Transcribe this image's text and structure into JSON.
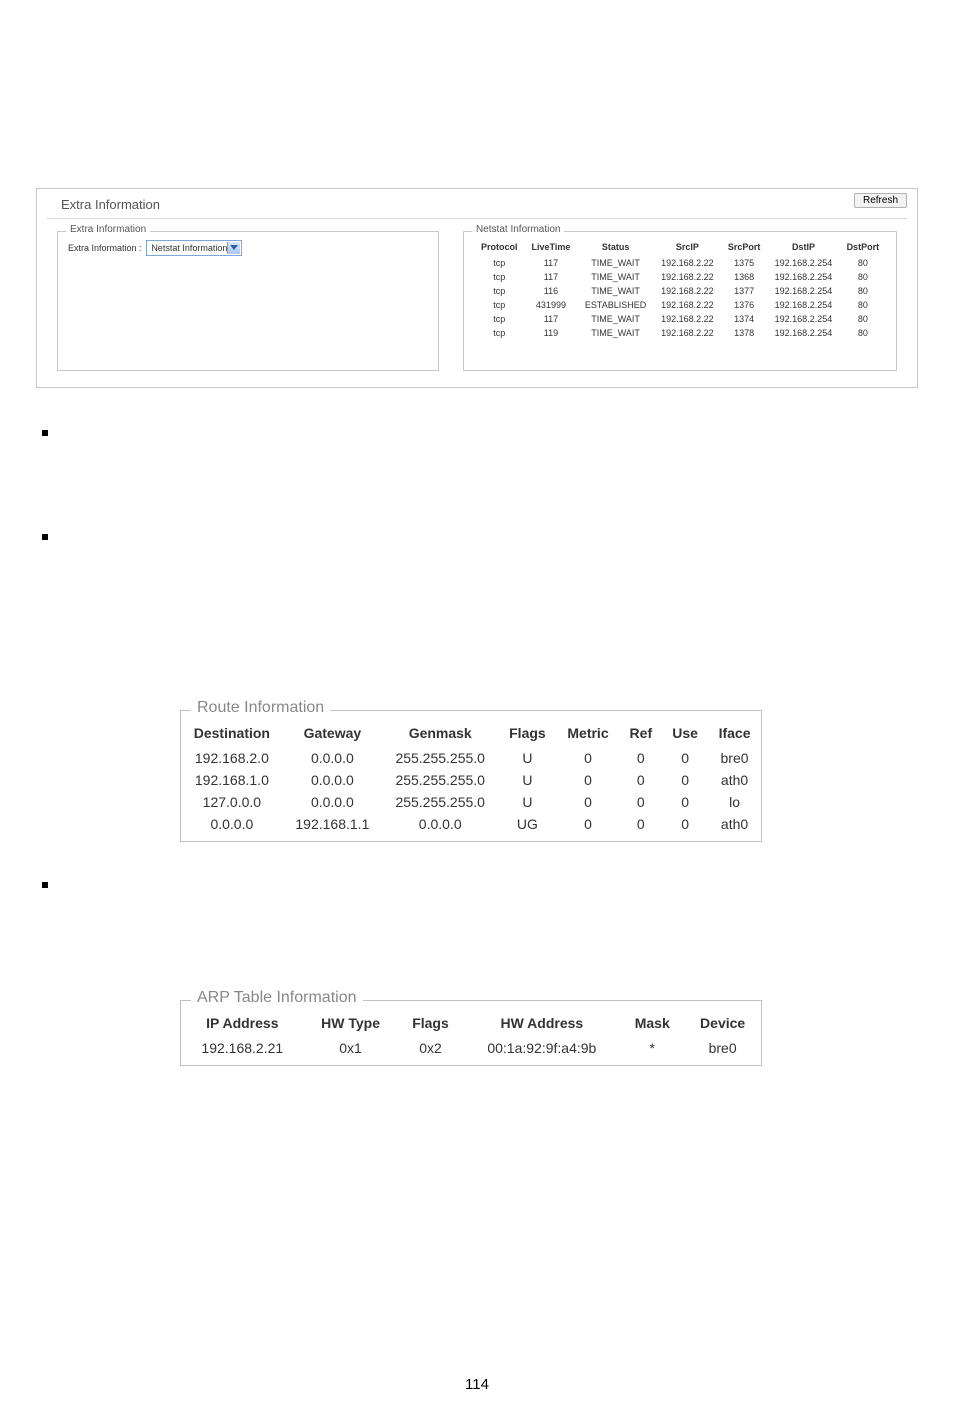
{
  "page_number": "114",
  "screenshot": {
    "title": "Extra Information",
    "refresh_label": "Refresh",
    "left_fieldset": {
      "legend": "Extra Information",
      "label": "Extra Information :",
      "selected": "Netstat Information"
    },
    "netstat": {
      "legend": "Netstat Information",
      "columns": [
        "Protocol",
        "LiveTime",
        "Status",
        "SrcIP",
        "SrcPort",
        "DstIP",
        "DstPort"
      ],
      "rows": [
        [
          "tcp",
          "117",
          "TIME_WAIT",
          "192.168.2.22",
          "1375",
          "192.168.2.254",
          "80"
        ],
        [
          "tcp",
          "117",
          "TIME_WAIT",
          "192.168.2.22",
          "1368",
          "192.168.2.254",
          "80"
        ],
        [
          "tcp",
          "116",
          "TIME_WAIT",
          "192.168.2.22",
          "1377",
          "192.168.2.254",
          "80"
        ],
        [
          "tcp",
          "431999",
          "ESTABLISHED",
          "192.168.2.22",
          "1376",
          "192.168.2.254",
          "80"
        ],
        [
          "tcp",
          "117",
          "TIME_WAIT",
          "192.168.2.22",
          "1374",
          "192.168.2.254",
          "80"
        ],
        [
          "tcp",
          "119",
          "TIME_WAIT",
          "192.168.2.22",
          "1378",
          "192.168.2.254",
          "80"
        ]
      ]
    }
  },
  "route": {
    "legend": "Route Information",
    "columns": [
      "Destination",
      "Gateway",
      "Genmask",
      "Flags",
      "Metric",
      "Ref",
      "Use",
      "Iface"
    ],
    "rows": [
      [
        "192.168.2.0",
        "0.0.0.0",
        "255.255.255.0",
        "U",
        "0",
        "0",
        "0",
        "bre0"
      ],
      [
        "192.168.1.0",
        "0.0.0.0",
        "255.255.255.0",
        "U",
        "0",
        "0",
        "0",
        "ath0"
      ],
      [
        "127.0.0.0",
        "0.0.0.0",
        "255.255.255.0",
        "U",
        "0",
        "0",
        "0",
        "lo"
      ],
      [
        "0.0.0.0",
        "192.168.1.1",
        "0.0.0.0",
        "UG",
        "0",
        "0",
        "0",
        "ath0"
      ]
    ]
  },
  "arp": {
    "legend": "ARP Table Information",
    "columns": [
      "IP Address",
      "HW Type",
      "Flags",
      "HW Address",
      "Mask",
      "Device"
    ],
    "rows": [
      [
        "192.168.2.21",
        "0x1",
        "0x2",
        "00:1a:92:9f:a4:9b",
        "*",
        "bre0"
      ]
    ]
  }
}
